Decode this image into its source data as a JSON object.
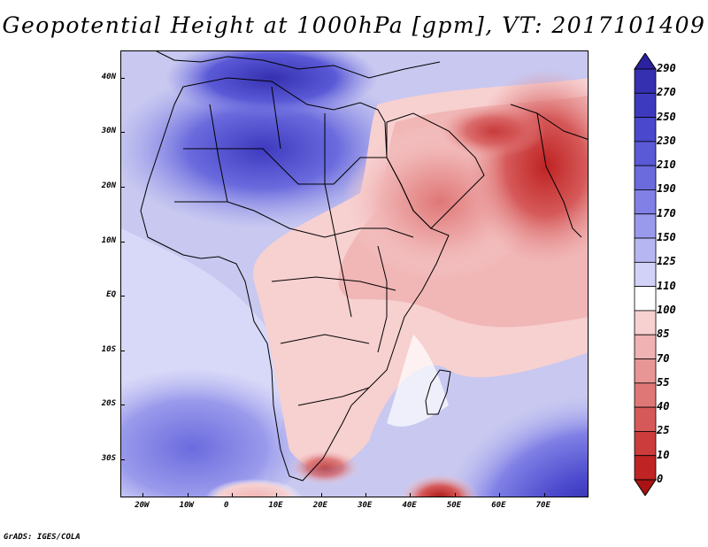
{
  "title": "Geopotential Height at 1000hPa [gpm], VT: 2017101409",
  "credit": "GrADS: IGES/COLA",
  "map": {
    "lon_range": [
      -25,
      80
    ],
    "lat_range": [
      -37,
      45
    ],
    "lon_ticks": [
      {
        "value": -20,
        "label": "20W"
      },
      {
        "value": -10,
        "label": "10W"
      },
      {
        "value": 0,
        "label": "0"
      },
      {
        "value": 10,
        "label": "10E"
      },
      {
        "value": 20,
        "label": "20E"
      },
      {
        "value": 30,
        "label": "30E"
      },
      {
        "value": 40,
        "label": "40E"
      },
      {
        "value": 50,
        "label": "50E"
      },
      {
        "value": 60,
        "label": "60E"
      },
      {
        "value": 70,
        "label": "70E"
      }
    ],
    "lat_ticks": [
      {
        "value": 40,
        "label": "40N"
      },
      {
        "value": 30,
        "label": "30N"
      },
      {
        "value": 20,
        "label": "20N"
      },
      {
        "value": 10,
        "label": "10N"
      },
      {
        "value": 0,
        "label": "EQ"
      },
      {
        "value": -10,
        "label": "10S"
      },
      {
        "value": -20,
        "label": "20S"
      },
      {
        "value": -30,
        "label": "30S"
      }
    ]
  },
  "colorbar": {
    "levels": [
      "290",
      "270",
      "250",
      "230",
      "210",
      "190",
      "170",
      "150",
      "125",
      "110",
      "100",
      "85",
      "70",
      "55",
      "40",
      "25",
      "10",
      "0"
    ],
    "colors": [
      "#2a229e",
      "#3530b0",
      "#3e3abf",
      "#4a48cc",
      "#5a59d6",
      "#6b6bde",
      "#8080e6",
      "#9a9aec",
      "#b6b6f2",
      "#d2d2f8",
      "#ffffff",
      "#f7d0d0",
      "#f0b2b2",
      "#e89595",
      "#e07777",
      "#d65959",
      "#cc3c3c",
      "#bf2323",
      "#a81414"
    ]
  }
}
